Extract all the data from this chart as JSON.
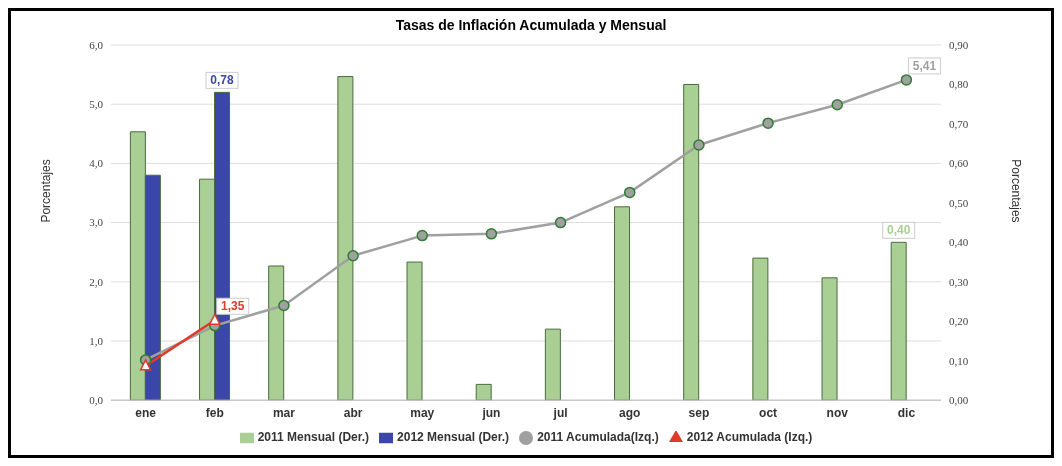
{
  "chart_data": {
    "type": "bar",
    "title": "Tasas de Inflación Acumulada y Mensual",
    "ylabel": "Porcentajes",
    "y2label": "Porcentajes",
    "categories": [
      "ene",
      "feb",
      "mar",
      "abr",
      "may",
      "jun",
      "jul",
      "ago",
      "sep",
      "oct",
      "nov",
      "dic"
    ],
    "series": [
      {
        "name": "2011 Mensual (Der.)",
        "axis": "y2",
        "color": "#a9cf94",
        "values": [
          0.68,
          0.56,
          0.34,
          0.82,
          0.35,
          0.04,
          0.18,
          0.49,
          0.8,
          0.36,
          0.31,
          0.4
        ],
        "value_labels": [
          null,
          null,
          null,
          null,
          null,
          null,
          null,
          null,
          null,
          null,
          null,
          "0,40"
        ]
      },
      {
        "name": "2012 Mensual (Der.)",
        "axis": "y2",
        "color": "#3a46a8",
        "values": [
          0.57,
          0.78,
          null,
          null,
          null,
          null,
          null,
          null,
          null,
          null,
          null,
          null
        ],
        "value_labels": [
          null,
          "0,78",
          null,
          null,
          null,
          null,
          null,
          null,
          null,
          null,
          null,
          null
        ]
      },
      {
        "name": "2011 Acumulada(Izq.)",
        "type": "line",
        "marker": "circle",
        "color": "#a0a0a0",
        "values": [
          0.68,
          1.26,
          1.6,
          2.44,
          2.78,
          2.81,
          3.0,
          3.51,
          4.31,
          4.68,
          4.99,
          5.41
        ],
        "value_labels": [
          null,
          null,
          null,
          null,
          null,
          null,
          null,
          null,
          null,
          null,
          null,
          "5,41"
        ]
      },
      {
        "name": "2012 Acumulada (Izq.)",
        "type": "line",
        "marker": "triangle",
        "color": "#e03a2a",
        "values": [
          0.58,
          1.35,
          null,
          null,
          null,
          null,
          null,
          null,
          null,
          null,
          null,
          null
        ],
        "value_labels": [
          null,
          "1,35",
          null,
          null,
          null,
          null,
          null,
          null,
          null,
          null,
          null,
          null
        ]
      }
    ],
    "ylim": [
      0,
      6
    ],
    "yticks": [
      {
        "value": 0,
        "label": "0,0"
      },
      {
        "value": 1,
        "label": "1,0"
      },
      {
        "value": 2,
        "label": "2,0"
      },
      {
        "value": 3,
        "label": "3,0"
      },
      {
        "value": 4,
        "label": "4,0"
      },
      {
        "value": 5,
        "label": "5,0"
      },
      {
        "value": 6,
        "label": "6,0"
      }
    ],
    "y2lim": [
      0,
      0.9
    ],
    "y2ticks": [
      {
        "value": 0,
        "label": "0,00"
      },
      {
        "value": 0.1,
        "label": "0,10"
      },
      {
        "value": 0.2,
        "label": "0,20"
      },
      {
        "value": 0.3,
        "label": "0,30"
      },
      {
        "value": 0.4,
        "label": "0,40"
      },
      {
        "value": 0.5,
        "label": "0,50"
      },
      {
        "value": 0.6,
        "label": "0,60"
      },
      {
        "value": 0.7,
        "label": "0,70"
      },
      {
        "value": 0.8,
        "label": "0,80"
      },
      {
        "value": 0.9,
        "label": "0,90"
      }
    ],
    "grid": "y",
    "legend": "bottom"
  }
}
